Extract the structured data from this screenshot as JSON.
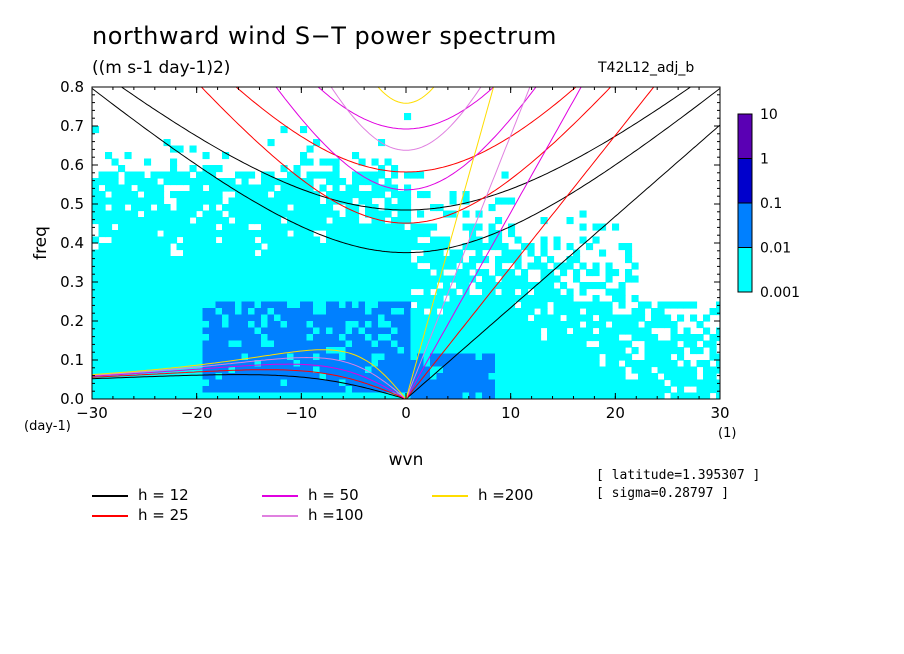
{
  "title": "northward wind S−T power spectrum",
  "subtitle": "((m s-1 day-1)2)",
  "run_name": "T42L12_adj_b",
  "info": [
    "[ latitude=1.395307 ]",
    "[ sigma=0.28797 ]"
  ],
  "chart_data": {
    "type": "heatmap",
    "xlabel": "wvn",
    "ylabel": "freq",
    "x_unit_label": "(1)",
    "y_unit_label": "(day-1)",
    "xlim": [
      -30,
      30
    ],
    "ylim": [
      0,
      0.8
    ],
    "x_ticks": [
      -30,
      -20,
      -10,
      0,
      10,
      20,
      30
    ],
    "x_tick_labels": [
      "−30",
      "−20",
      "−10",
      "0",
      "10",
      "20",
      "30"
    ],
    "y_ticks": [
      0,
      0.1,
      0.2,
      0.3,
      0.4,
      0.5,
      0.6,
      0.7,
      0.8
    ],
    "y_tick_labels": [
      "0.0",
      "0.1",
      "0.2",
      "0.3",
      "0.4",
      "0.5",
      "0.6",
      "0.7",
      "0.8"
    ],
    "colorbar": {
      "levels": [
        "0.001",
        "0.01",
        "0.1",
        "1",
        "10"
      ],
      "colors": [
        "#00ffff",
        "#0080ff",
        "#0000cc",
        "#5a00b4"
      ]
    },
    "dispersion_curves": [
      {
        "label": "h = 12",
        "h": 12,
        "color": "#000000"
      },
      {
        "label": "h = 25",
        "h": 25,
        "color": "#ff0000"
      },
      {
        "label": "h = 50",
        "h": 50,
        "color": "#e000e0"
      },
      {
        "label": "h =100",
        "h": 100,
        "color": "#e080e0"
      },
      {
        "label": "h =200",
        "h": 200,
        "color": "#ffdd00"
      }
    ]
  }
}
